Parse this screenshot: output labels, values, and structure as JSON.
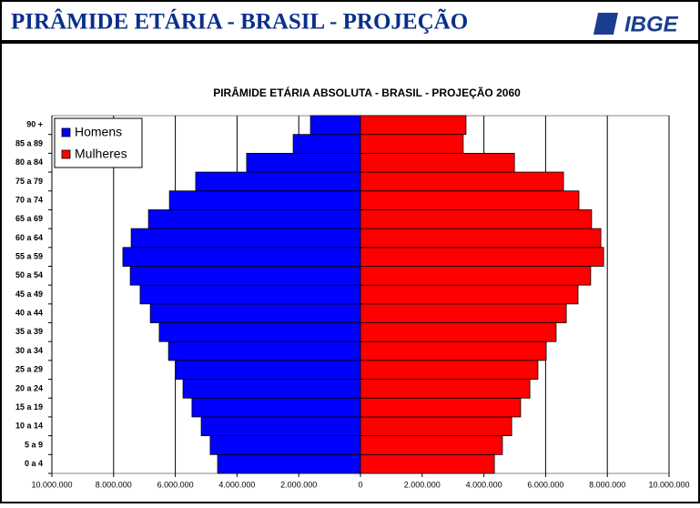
{
  "header": {
    "title": "PIRÂMIDE ETÁRIA - BRASIL - PROJEÇÃO",
    "logo": "IBGE"
  },
  "chart_data": {
    "type": "pyramid",
    "title": "PIRÂMIDE ETÁRIA ABSOLUTA - BRASIL - PROJEÇÃO 2060",
    "categories": [
      "0 a 4",
      "5 a 9",
      "10 a 14",
      "15 a 19",
      "20 a 24",
      "25 a 29",
      "30 a 34",
      "35 a 39",
      "40 a 44",
      "45 a 49",
      "50 a 54",
      "55 a 59",
      "60 a 64",
      "65 a 69",
      "70 a 74",
      "75 a 79",
      "80 a 84",
      "85 a 89",
      "90 +"
    ],
    "series": [
      {
        "name": "Homens",
        "color": "#0000ff",
        "side": "left",
        "values": [
          4630000,
          4870000,
          5160000,
          5460000,
          5750000,
          5990000,
          6220000,
          6520000,
          6810000,
          7140000,
          7460000,
          7700000,
          7430000,
          6870000,
          6190000,
          5340000,
          3690000,
          2180000,
          1620000
        ]
      },
      {
        "name": "Mulheres",
        "color": "#ff0000",
        "side": "right",
        "values": [
          4340000,
          4600000,
          4900000,
          5190000,
          5490000,
          5750000,
          6020000,
          6340000,
          6670000,
          7050000,
          7460000,
          7880000,
          7790000,
          7490000,
          7080000,
          6580000,
          4990000,
          3330000,
          3420000
        ]
      }
    ],
    "xlim": [
      -10000000,
      10000000
    ],
    "xticks": [
      {
        "value": -10000000,
        "label": "10.000.000"
      },
      {
        "value": -8000000,
        "label": "8.000.000"
      },
      {
        "value": -6000000,
        "label": "6.000.000"
      },
      {
        "value": -4000000,
        "label": "4.000.000"
      },
      {
        "value": -2000000,
        "label": "2.000.000"
      },
      0,
      {
        "value": 2000000,
        "label": "2.000.000"
      },
      {
        "value": 4000000,
        "label": "4.000.000"
      },
      {
        "value": 6000000,
        "label": "6.000.000"
      },
      {
        "value": 8000000,
        "label": "8.000.000"
      },
      {
        "value": 10000000,
        "label": "10.000.000"
      }
    ],
    "grid": true,
    "legend": "top-left"
  }
}
